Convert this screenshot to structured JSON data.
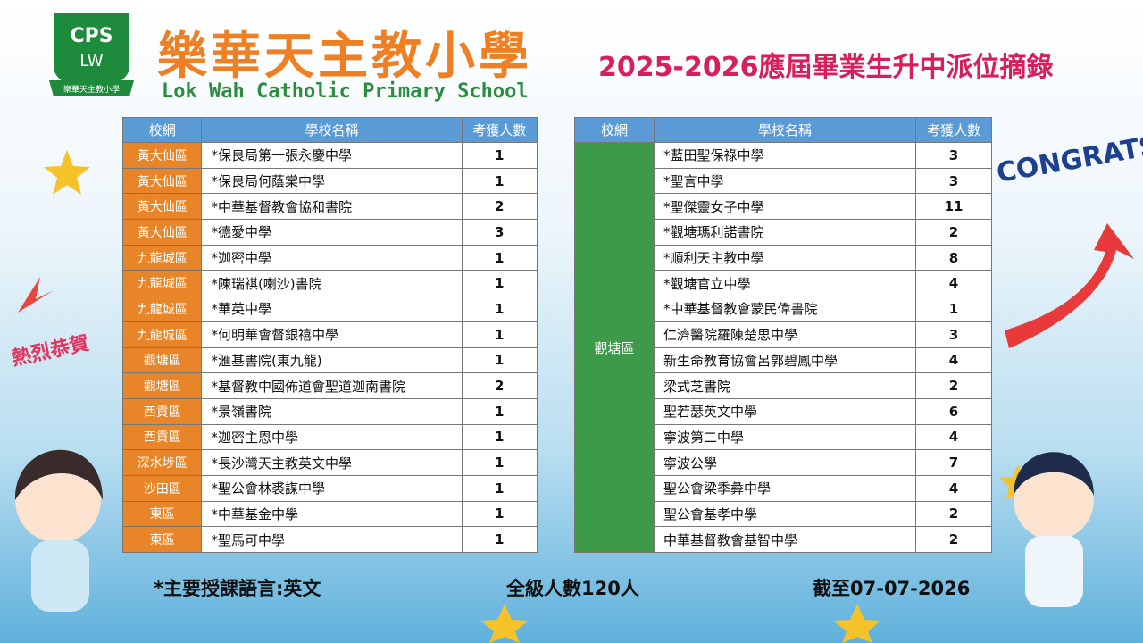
{
  "header": {
    "logo_top": "CPS",
    "logo_bottom": "LW",
    "logo_ribbon": "樂華天主教小學",
    "school_name_zh": "樂華天主教小學",
    "school_name_en": "Lok Wah Catholic Primary School",
    "title": "2025-2026應屆畢業生升中派位摘錄"
  },
  "decorations": {
    "congrats": "CONGRATS!",
    "greeting": "熱烈恭賀"
  },
  "columns": [
    "校網",
    "學校名稱",
    "考獲人數"
  ],
  "left_table": {
    "rows": [
      [
        "黃大仙區",
        "*保良局第一張永慶中學",
        1
      ],
      [
        "黃大仙區",
        "*保良局何蔭棠中學",
        1
      ],
      [
        "黃大仙區",
        "*中華基督教會協和書院",
        2
      ],
      [
        "黃大仙區",
        "*德愛中學",
        3
      ],
      [
        "九龍城區",
        "*迦密中學",
        1
      ],
      [
        "九龍城區",
        "*陳瑞祺(喇沙)書院",
        1
      ],
      [
        "九龍城區",
        "*華英中學",
        1
      ],
      [
        "九龍城區",
        "*何明華會督銀禧中學",
        1
      ],
      [
        "觀塘區",
        "*滙基書院(東九龍)",
        1
      ],
      [
        "觀塘區",
        "*基督教中國佈道會聖道迦南書院",
        2
      ],
      [
        "西貢區",
        "*景嶺書院",
        1
      ],
      [
        "西貢區",
        "*迦密主恩中學",
        1
      ],
      [
        "深水埗區",
        "*長沙灣天主教英文中學",
        1
      ],
      [
        "沙田區",
        "*聖公會林裘謀中學",
        1
      ],
      [
        "東區",
        "*中華基金中學",
        1
      ],
      [
        "東區",
        "*聖馬可中學",
        1
      ]
    ]
  },
  "right_table": {
    "district": "觀塘區",
    "rows": [
      [
        "*藍田聖保祿中學",
        3
      ],
      [
        "*聖言中學",
        3
      ],
      [
        "*聖傑靈女子中學",
        11
      ],
      [
        "*觀塘瑪利諾書院",
        2
      ],
      [
        "*順利天主教中學",
        8
      ],
      [
        "*觀塘官立中學",
        4
      ],
      [
        "*中華基督教會蒙民偉書院",
        1
      ],
      [
        "仁濟醫院羅陳楚思中學",
        3
      ],
      [
        "新生命教育協會呂郭碧鳳中學",
        4
      ],
      [
        "梁式芝書院",
        2
      ],
      [
        "聖若瑟英文中學",
        6
      ],
      [
        "寧波第二中學",
        4
      ],
      [
        "寧波公學",
        7
      ],
      [
        "聖公會梁季彜中學",
        4
      ],
      [
        "聖公會基孝中學",
        2
      ],
      [
        "中華基督教會基智中學",
        2
      ]
    ]
  },
  "footer": {
    "language_note": "*主要授課語言:英文",
    "total": "全級人數120人",
    "as_of": "截至07-07-2026"
  }
}
